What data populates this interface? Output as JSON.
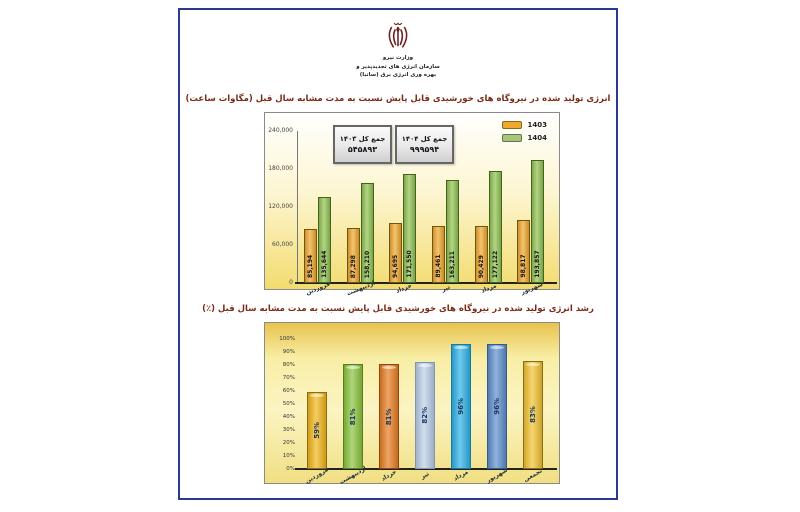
{
  "page": {
    "header": {
      "emblem_icon": "iran-national-emblem",
      "org_lines": [
        "وزارت نیرو",
        "سازمان انرژی های تجدیدپذیر و",
        "بهره وری انرژی برق (ساتبا)"
      ]
    }
  },
  "colors": {
    "page_border": "#2B3990",
    "title_text": "#7A2A15",
    "chart_bg_bottom": "#F2DC6F",
    "value_label_navy": "#17365D"
  },
  "chart_data": [
    {
      "type": "bar",
      "title": "انرژی تولید شده در نیروگاه های خورشیدی قابل پایش نسبت به مدت مشابه سال قبل (مگاوات ساعت)",
      "categories": [
        "فروردین",
        "اردیبهشت",
        "خرداد",
        "تیر",
        "مرداد",
        "شهریور"
      ],
      "series": [
        {
          "name": "1403",
          "color": "#F0A830",
          "values": [
            85194,
            87298,
            94695,
            89461,
            90429,
            98817
          ]
        },
        {
          "name": "1404",
          "color": "#92C353",
          "values": [
            135644,
            158210,
            171550,
            163211,
            177122,
            193857
          ]
        }
      ],
      "totals": [
        {
          "label": "جمع کل ۱۴۰۳",
          "value": "۵۴۵۸۹۳"
        },
        {
          "label": "جمع کل ۱۴۰۴",
          "value": "۹۹۹۵۹۴"
        }
      ],
      "ylim": [
        0,
        240000
      ],
      "yticks": [
        "240,000",
        "180,000",
        "120,000",
        "60,000",
        "0"
      ],
      "grid": false,
      "legend_position": "top-right"
    },
    {
      "type": "bar",
      "title": "رشد انرژی تولید شده در نیروگاه های خورشیدی قابل پایش نسبت به مدت مشابه سال قبل (٪)",
      "categories": [
        "فروردین",
        "اردیبهشت",
        "خرداد",
        "تیر",
        "مرداد",
        "شهریور",
        "تجمعی"
      ],
      "values": [
        59,
        81,
        81,
        82,
        96,
        96,
        83
      ],
      "labels": [
        "59%",
        "81%",
        "81%",
        "82%",
        "96%",
        "96%",
        "83%"
      ],
      "colors": [
        "#F3B71B",
        "#8DC63F",
        "#E87E24",
        "#BDD0E9",
        "#2FB3E8",
        "#6090CE",
        "#F3C433"
      ],
      "border_colors": [
        "#8F6B14",
        "#55801F",
        "#93470E",
        "#7E94B8",
        "#1578A5",
        "#2F5B96",
        "#8F6B14"
      ],
      "ylim": [
        0,
        100
      ],
      "yticks": [
        "100%",
        "90%",
        "80%",
        "70%",
        "60%",
        "50%",
        "40%",
        "30%",
        "20%",
        "10%",
        "0%"
      ],
      "grid": false,
      "legend_position": "none"
    }
  ]
}
